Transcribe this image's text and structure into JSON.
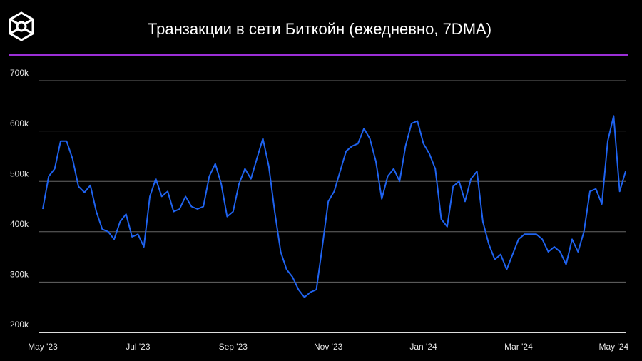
{
  "chart_data": {
    "type": "line",
    "title": "Транзакции в сети Биткойн (ежедневно, 7DMA)",
    "categories": [
      "May '23",
      null,
      null,
      null,
      null,
      null,
      null,
      null,
      null,
      null,
      null,
      null,
      null,
      null,
      null,
      null,
      "Jul '23",
      null,
      null,
      null,
      null,
      null,
      null,
      null,
      null,
      null,
      null,
      null,
      null,
      null,
      null,
      null,
      "Sep '23",
      null,
      null,
      null,
      null,
      null,
      null,
      null,
      null,
      null,
      null,
      null,
      null,
      null,
      null,
      null,
      "Nov '23",
      null,
      null,
      null,
      null,
      null,
      null,
      null,
      null,
      null,
      null,
      null,
      null,
      null,
      null,
      null,
      "Jan '24",
      null,
      null,
      null,
      null,
      null,
      null,
      null,
      null,
      null,
      null,
      null,
      null,
      null,
      null,
      null,
      "Mar '24",
      null,
      null,
      null,
      null,
      null,
      null,
      null,
      null,
      null,
      null,
      null,
      null,
      null,
      null,
      null,
      "May '24",
      null,
      null
    ],
    "series": [
      {
        "color": "#1f63f0",
        "values": [
          445000,
          510000,
          525000,
          580000,
          580000,
          545000,
          490000,
          478000,
          492000,
          440000,
          405000,
          400000,
          385000,
          420000,
          435000,
          390000,
          395000,
          370000,
          470000,
          505000,
          470000,
          480000,
          440000,
          445000,
          470000,
          450000,
          445000,
          450000,
          510000,
          535000,
          495000,
          430000,
          440000,
          495000,
          525000,
          505000,
          545000,
          585000,
          530000,
          440000,
          360000,
          325000,
          310000,
          285000,
          270000,
          280000,
          285000,
          370000,
          460000,
          480000,
          520000,
          560000,
          570000,
          575000,
          605000,
          585000,
          540000,
          465000,
          510000,
          525000,
          500000,
          570000,
          615000,
          620000,
          575000,
          555000,
          525000,
          425000,
          410000,
          490000,
          500000,
          460000,
          505000,
          520000,
          420000,
          375000,
          345000,
          355000,
          325000,
          355000,
          385000,
          395000,
          395000,
          395000,
          385000,
          360000,
          370000,
          360000,
          335000,
          385000,
          360000,
          400000,
          480000,
          485000,
          455000,
          580000,
          630000,
          480000,
          520000
        ]
      }
    ],
    "ylim": [
      200000,
      700000
    ],
    "yticks": [
      {
        "value": 200000,
        "label": "200k"
      },
      {
        "value": 300000,
        "label": "300k"
      },
      {
        "value": 400000,
        "label": "400k"
      },
      {
        "value": 500000,
        "label": "500k"
      },
      {
        "value": 600000,
        "label": "600k"
      },
      {
        "value": 700000,
        "label": "700k"
      }
    ],
    "grid": true
  }
}
